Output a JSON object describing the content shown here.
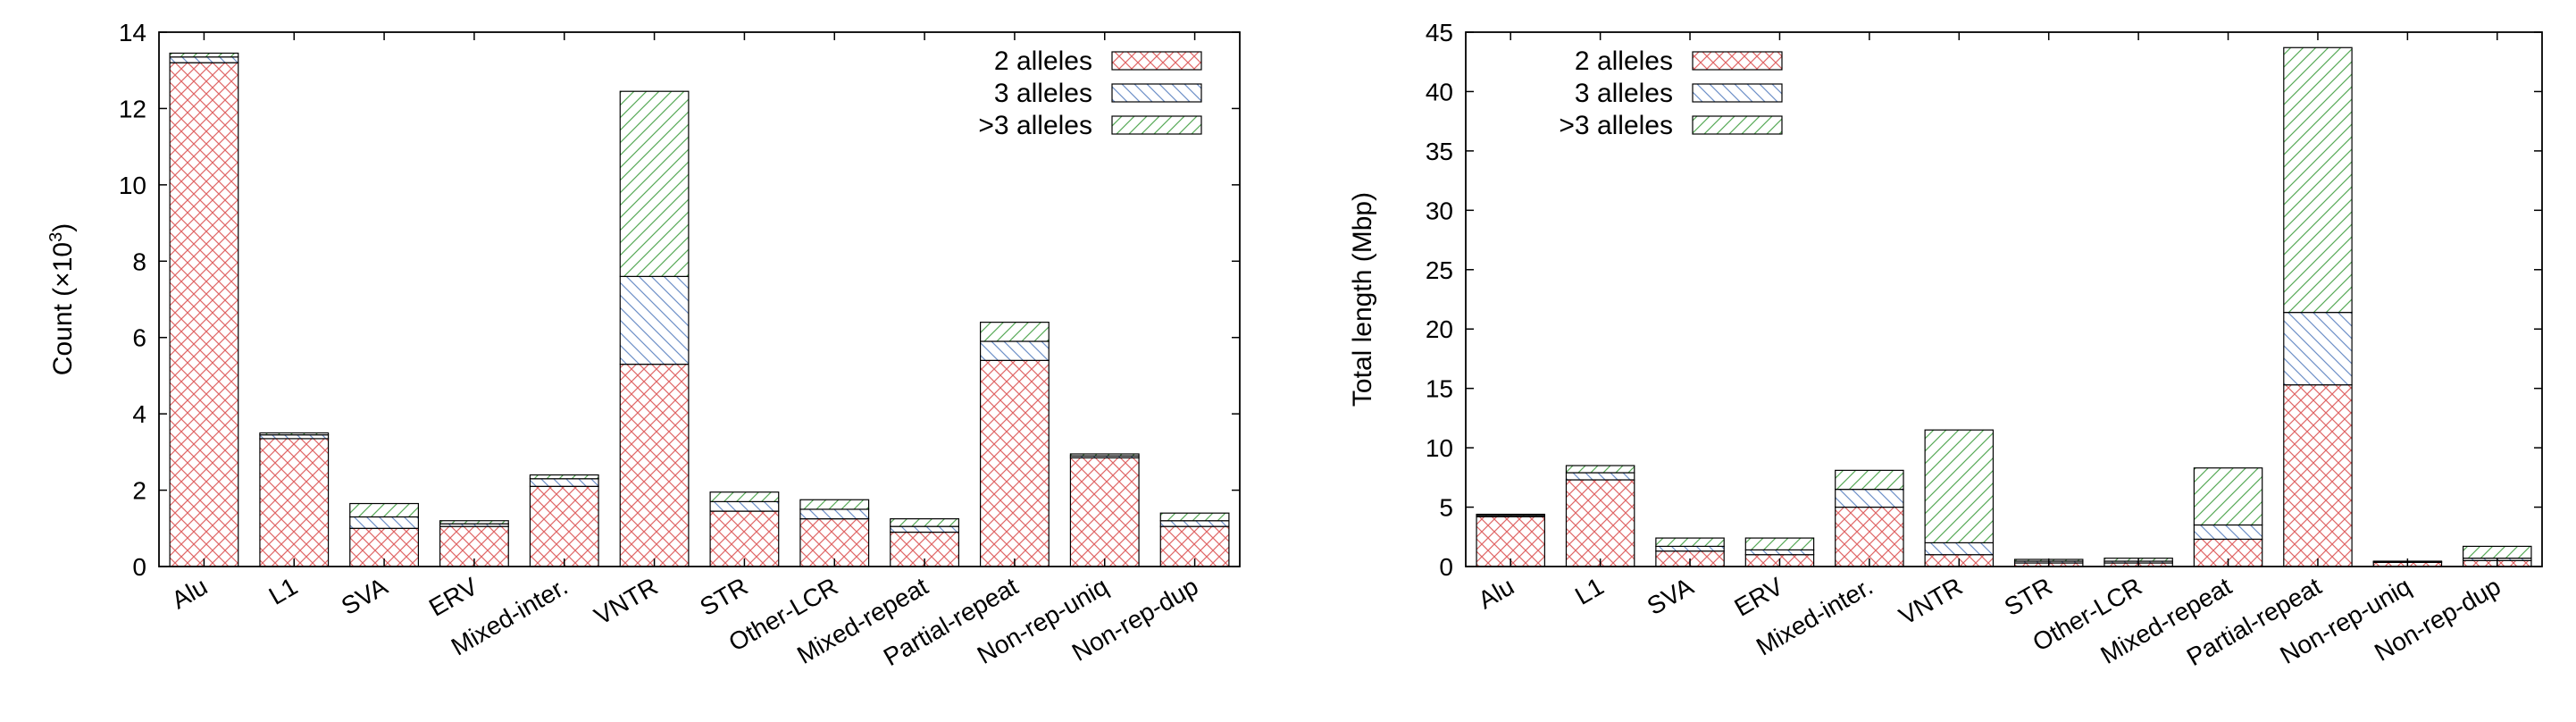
{
  "chart_data": [
    {
      "type": "bar",
      "stacked": true,
      "categories": [
        "Alu",
        "L1",
        "SVA",
        "ERV",
        "Mixed-inter.",
        "VNTR",
        "STR",
        "Other-LCR",
        "Mixed-repeat",
        "Partial-repeat",
        "Non-rep-uniq",
        "Non-rep-dup"
      ],
      "series": [
        {
          "name": "2 alleles",
          "color": "#e06666",
          "pattern": "crosshatch",
          "values": [
            13.2,
            3.35,
            1.0,
            1.05,
            2.1,
            5.3,
            1.45,
            1.25,
            0.9,
            5.4,
            2.85,
            1.05
          ]
        },
        {
          "name": "3 alleles",
          "color": "#6d8fc7",
          "pattern": "diagonal-back",
          "values": [
            0.15,
            0.1,
            0.3,
            0.07,
            0.2,
            2.3,
            0.25,
            0.25,
            0.15,
            0.5,
            0.05,
            0.15
          ]
        },
        {
          "name": ">3 alleles",
          "color": "#57a957",
          "pattern": "diagonal-forward",
          "values": [
            0.1,
            0.05,
            0.35,
            0.08,
            0.1,
            4.85,
            0.25,
            0.25,
            0.2,
            0.5,
            0.05,
            0.2
          ]
        }
      ],
      "ylabel": "Count (×10",
      "ylabel_sup": "3",
      "ylabel_end": ")",
      "ylim": [
        0,
        14
      ],
      "yticks": [
        0,
        2,
        4,
        6,
        8,
        10,
        12,
        14
      ],
      "legend_position": "top-right",
      "grid": false
    },
    {
      "type": "bar",
      "stacked": true,
      "categories": [
        "Alu",
        "L1",
        "SVA",
        "ERV",
        "Mixed-inter.",
        "VNTR",
        "STR",
        "Other-LCR",
        "Mixed-repeat",
        "Partial-repeat",
        "Non-rep-uniq",
        "Non-rep-dup"
      ],
      "series": [
        {
          "name": "2 alleles",
          "color": "#e06666",
          "pattern": "crosshatch",
          "values": [
            4.2,
            7.3,
            1.3,
            1.0,
            5.0,
            1.0,
            0.3,
            0.3,
            2.3,
            15.3,
            0.35,
            0.5
          ]
        },
        {
          "name": "3 alleles",
          "color": "#6d8fc7",
          "pattern": "diagonal-back",
          "values": [
            0.1,
            0.6,
            0.4,
            0.4,
            1.5,
            1.0,
            0.15,
            0.15,
            1.2,
            6.1,
            0.05,
            0.2
          ]
        },
        {
          "name": ">3 alleles",
          "color": "#57a957",
          "pattern": "diagonal-forward",
          "values": [
            0.1,
            0.6,
            0.7,
            1.0,
            1.6,
            9.5,
            0.15,
            0.25,
            4.8,
            22.3,
            0.05,
            1.0
          ]
        }
      ],
      "ylabel": "Total length (Mbp)",
      "ylim": [
        0,
        45
      ],
      "yticks": [
        0,
        5,
        10,
        15,
        20,
        25,
        30,
        35,
        40,
        45
      ],
      "legend_position": "top-left",
      "grid": false
    }
  ]
}
